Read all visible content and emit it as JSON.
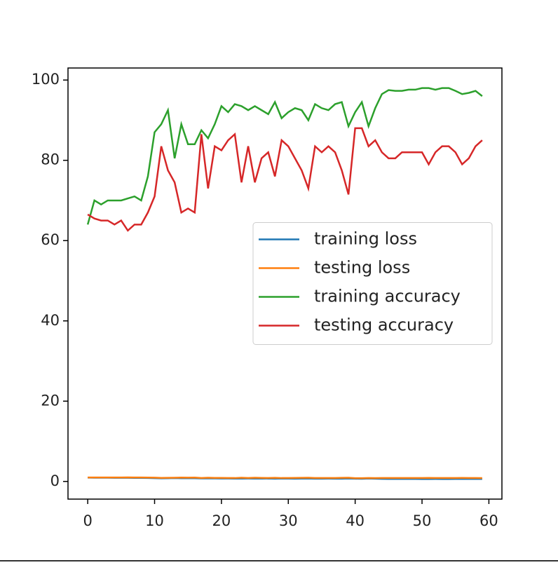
{
  "chart_data": {
    "type": "line",
    "x": [
      0,
      1,
      2,
      3,
      4,
      5,
      6,
      7,
      8,
      9,
      10,
      11,
      12,
      13,
      14,
      15,
      16,
      17,
      18,
      19,
      20,
      21,
      22,
      23,
      24,
      25,
      26,
      27,
      28,
      29,
      30,
      31,
      32,
      33,
      34,
      35,
      36,
      37,
      38,
      39,
      40,
      41,
      42,
      43,
      44,
      45,
      46,
      47,
      48,
      49,
      50,
      51,
      52,
      53,
      54,
      55,
      56,
      57,
      58,
      59
    ],
    "series": [
      {
        "name": "training loss",
        "color": "#1f77b4",
        "values": [
          0.95,
          0.93,
          0.92,
          0.92,
          0.91,
          0.9,
          0.9,
          0.89,
          0.88,
          0.86,
          0.82,
          0.78,
          0.8,
          0.84,
          0.8,
          0.79,
          0.8,
          0.76,
          0.78,
          0.75,
          0.72,
          0.73,
          0.7,
          0.71,
          0.72,
          0.7,
          0.71,
          0.72,
          0.69,
          0.72,
          0.7,
          0.69,
          0.7,
          0.72,
          0.68,
          0.69,
          0.7,
          0.68,
          0.68,
          0.72,
          0.68,
          0.66,
          0.72,
          0.68,
          0.64,
          0.62,
          0.62,
          0.62,
          0.61,
          0.61,
          0.6,
          0.6,
          0.61,
          0.6,
          0.6,
          0.61,
          0.62,
          0.62,
          0.61,
          0.62
        ]
      },
      {
        "name": "testing loss",
        "color": "#ff7f0e",
        "values": [
          1.0,
          1.0,
          1.0,
          1.0,
          1.0,
          1.0,
          1.02,
          1.0,
          1.0,
          0.98,
          0.95,
          0.88,
          0.9,
          0.92,
          0.96,
          0.95,
          0.96,
          0.86,
          0.92,
          0.88,
          0.88,
          0.86,
          0.85,
          0.92,
          0.87,
          0.92,
          0.88,
          0.87,
          0.9,
          0.85,
          0.86,
          0.88,
          0.9,
          0.92,
          0.86,
          0.87,
          0.86,
          0.87,
          0.9,
          0.93,
          0.82,
          0.82,
          0.85,
          0.84,
          0.86,
          0.87,
          0.87,
          0.86,
          0.86,
          0.86,
          0.86,
          0.88,
          0.86,
          0.85,
          0.85,
          0.86,
          0.88,
          0.87,
          0.85,
          0.84
        ]
      },
      {
        "name": "training accuracy",
        "color": "#2ca02c",
        "values": [
          64,
          70,
          69,
          70,
          70,
          70,
          70.5,
          71,
          70,
          76,
          87,
          89,
          92.5,
          80.5,
          89,
          84,
          84,
          87.5,
          85.5,
          89,
          93.5,
          92,
          94,
          93.5,
          92.5,
          93.5,
          92.5,
          91.5,
          94.5,
          90.5,
          92,
          93,
          92.5,
          90,
          94,
          93,
          92.5,
          94,
          94.5,
          88.5,
          92,
          94.5,
          88.5,
          93,
          96.5,
          97.5,
          97.3,
          97.3,
          97.6,
          97.6,
          98,
          98,
          97.6,
          98,
          98,
          97.3,
          96.5,
          96.8,
          97.3,
          96
        ]
      },
      {
        "name": "testing accuracy",
        "color": "#d62728",
        "values": [
          66.5,
          65.5,
          65,
          65,
          64,
          65,
          62.5,
          64,
          64,
          67,
          71,
          83.5,
          77.5,
          74.5,
          67,
          68,
          67,
          86.5,
          73,
          83.5,
          82.5,
          85,
          86.5,
          74.5,
          83.5,
          74.5,
          80.5,
          82,
          76,
          85,
          83.5,
          80.5,
          77.5,
          73,
          83.5,
          82,
          83.5,
          82,
          77.5,
          71.5,
          88,
          88,
          83.5,
          85,
          82,
          80.5,
          80.5,
          82,
          82,
          82,
          82,
          79,
          82,
          83.5,
          83.5,
          82,
          79,
          80.5,
          83.5,
          85
        ]
      }
    ],
    "xlim": [
      -2.95,
      61.95
    ],
    "ylim": [
      -4.4,
      103
    ],
    "xticks": [
      0,
      10,
      20,
      30,
      40,
      50,
      60
    ],
    "yticks": [
      0,
      20,
      40,
      60,
      80,
      100
    ],
    "legend": "center right",
    "grid": false
  }
}
